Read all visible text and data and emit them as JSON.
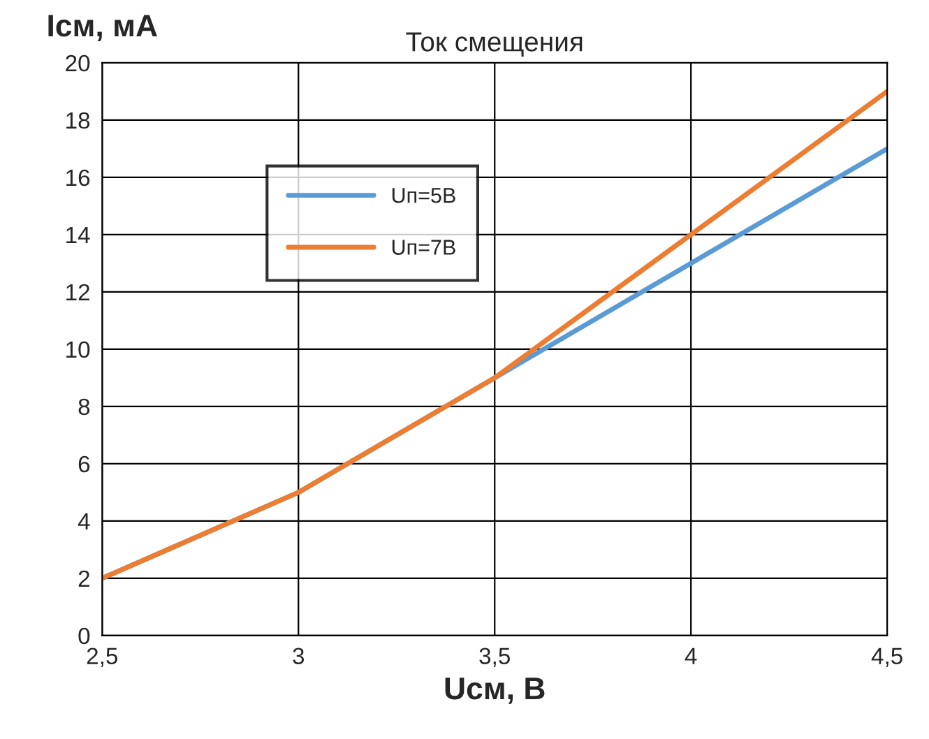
{
  "chart_data": {
    "type": "line",
    "title": "Ток смещения",
    "xlabel": "Uсм, В",
    "ylabel": "Iсм, мА",
    "x": [
      2.5,
      3,
      3.5,
      4,
      4.5
    ],
    "series": [
      {
        "name": "Uп=5В",
        "color": "#5b9bd5",
        "values": [
          2,
          5,
          9,
          13,
          17
        ]
      },
      {
        "name": "Uп=7В",
        "color": "#ed7d31",
        "values": [
          2,
          5,
          9,
          14,
          19
        ]
      }
    ],
    "xlim": [
      2.5,
      4.5
    ],
    "xticks": [
      {
        "value": 2.5,
        "label": "2,5"
      },
      3,
      {
        "value": 3.5,
        "label": "3,5"
      },
      4,
      {
        "value": 4.5,
        "label": "4,5"
      }
    ],
    "ylim": [
      0,
      20
    ],
    "yticks": [
      0,
      2,
      4,
      6,
      8,
      10,
      12,
      14,
      16,
      18,
      20
    ],
    "grid": true,
    "legend": "top left",
    "marker": "none",
    "line_style": "solid"
  }
}
